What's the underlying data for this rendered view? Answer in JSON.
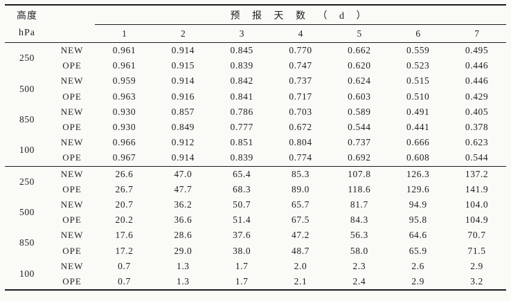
{
  "table": {
    "corner_line1": "高度",
    "corner_line2": "hPa",
    "span_header": "预 报 天 数 （ d ）"
  },
  "chart_data": {
    "type": "table",
    "title": "",
    "column_group_label": "预报天数（d）",
    "columns": [
      "1",
      "2",
      "3",
      "4",
      "5",
      "6",
      "7"
    ],
    "row_header_lines": [
      "高度",
      "hPa"
    ],
    "model_labels": [
      "NEW",
      "OPE"
    ],
    "sections": [
      {
        "name": "upper-section",
        "groups": [
          {
            "height": "250",
            "rows": [
              {
                "model": "NEW",
                "values": [
                  "0.961",
                  "0.914",
                  "0.845",
                  "0.770",
                  "0.662",
                  "0.559",
                  "0.495"
                ]
              },
              {
                "model": "OPE",
                "values": [
                  "0.961",
                  "0.915",
                  "0.839",
                  "0.747",
                  "0.620",
                  "0.523",
                  "0.446"
                ]
              }
            ]
          },
          {
            "height": "500",
            "rows": [
              {
                "model": "NEW",
                "values": [
                  "0.959",
                  "0.914",
                  "0.842",
                  "0.737",
                  "0.624",
                  "0.515",
                  "0.446"
                ]
              },
              {
                "model": "OPE",
                "values": [
                  "0.963",
                  "0.916",
                  "0.841",
                  "0.717",
                  "0.603",
                  "0.510",
                  "0.429"
                ]
              }
            ]
          },
          {
            "height": "850",
            "rows": [
              {
                "model": "NEW",
                "values": [
                  "0.930",
                  "0.857",
                  "0.786",
                  "0.703",
                  "0.589",
                  "0.491",
                  "0.405"
                ]
              },
              {
                "model": "OPE",
                "values": [
                  "0.930",
                  "0.849",
                  "0.777",
                  "0.672",
                  "0.544",
                  "0.441",
                  "0.378"
                ]
              }
            ]
          },
          {
            "height": "100",
            "rows": [
              {
                "model": "NEW",
                "values": [
                  "0.966",
                  "0.912",
                  "0.851",
                  "0.804",
                  "0.737",
                  "0.666",
                  "0.623"
                ]
              },
              {
                "model": "OPE",
                "values": [
                  "0.967",
                  "0.914",
                  "0.839",
                  "0.774",
                  "0.692",
                  "0.608",
                  "0.544"
                ]
              }
            ]
          }
        ]
      },
      {
        "name": "lower-section",
        "groups": [
          {
            "height": "250",
            "rows": [
              {
                "model": "NEW",
                "values": [
                  "26.6",
                  "47.0",
                  "65.4",
                  "85.3",
                  "107.8",
                  "126.3",
                  "137.2"
                ]
              },
              {
                "model": "OPE",
                "values": [
                  "26.7",
                  "47.7",
                  "68.3",
                  "89.0",
                  "118.6",
                  "129.6",
                  "141.9"
                ]
              }
            ]
          },
          {
            "height": "500",
            "rows": [
              {
                "model": "NEW",
                "values": [
                  "20.7",
                  "36.2",
                  "50.7",
                  "65.7",
                  "81.7",
                  "94.9",
                  "104.0"
                ]
              },
              {
                "model": "OPE",
                "values": [
                  "20.2",
                  "36.6",
                  "51.4",
                  "67.5",
                  "84.3",
                  "95.8",
                  "104.9"
                ]
              }
            ]
          },
          {
            "height": "850",
            "rows": [
              {
                "model": "NEW",
                "values": [
                  "17.6",
                  "28.6",
                  "37.6",
                  "47.2",
                  "56.3",
                  "64.6",
                  "70.7"
                ]
              },
              {
                "model": "OPE",
                "values": [
                  "17.2",
                  "29.0",
                  "38.0",
                  "48.7",
                  "58.0",
                  "65.9",
                  "71.5"
                ]
              }
            ]
          },
          {
            "height": "100",
            "rows": [
              {
                "model": "NEW",
                "values": [
                  "0.7",
                  "1.3",
                  "1.7",
                  "2.0",
                  "2.3",
                  "2.6",
                  "2.9"
                ]
              },
              {
                "model": "OPE",
                "values": [
                  "0.7",
                  "1.3",
                  "1.7",
                  "2.1",
                  "2.4",
                  "2.9",
                  "3.2"
                ]
              }
            ]
          }
        ]
      }
    ]
  }
}
